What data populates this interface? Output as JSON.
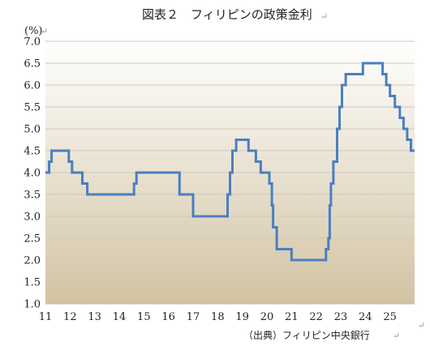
{
  "chart_data": {
    "type": "line",
    "title": "図表２　フィリピンの政策金利",
    "ylabel": "(%)",
    "source": "（出典）フィリピン中央銀行",
    "ylim": [
      1.0,
      7.0
    ],
    "xlim": [
      11,
      26
    ],
    "yticks": [
      "1.0",
      "1.5",
      "2.0",
      "2.5",
      "3.0",
      "3.5",
      "4.0",
      "4.5",
      "5.0",
      "5.5",
      "6.0",
      "6.5",
      "7.0"
    ],
    "xticks": [
      "11",
      "12",
      "13",
      "14",
      "15",
      "16",
      "17",
      "18",
      "19",
      "20",
      "21",
      "22",
      "23",
      "24",
      "25"
    ],
    "grid": true,
    "colors": {
      "line": "#4a7fc0",
      "grid": "#cfc8bd",
      "bg_top": "#ffffff",
      "bg_bottom": "#d2c3a2"
    },
    "series": [
      {
        "x": [
          11.0,
          11.15,
          11.25,
          11.33,
          11.95,
          12.08,
          12.5,
          12.7,
          14.6,
          14.7,
          16.45,
          17.0,
          18.4,
          18.5,
          18.6,
          18.75,
          19.25,
          19.55,
          19.75,
          19.9,
          20.1,
          20.2,
          20.25,
          20.4,
          20.6,
          21.0,
          22.4,
          22.5,
          22.55,
          22.6,
          22.7,
          22.75,
          22.85,
          22.95,
          23.05,
          23.2,
          23.3,
          23.4,
          23.9,
          24.7,
          24.85,
          25.0,
          25.2,
          25.4,
          25.55,
          25.7,
          25.85,
          25.95,
          26.0
        ],
        "y": [
          4.0,
          4.25,
          4.5,
          4.5,
          4.25,
          4.0,
          3.75,
          3.5,
          3.75,
          4.0,
          3.5,
          3.0,
          3.5,
          4.0,
          4.5,
          4.75,
          4.5,
          4.25,
          4.0,
          4.0,
          3.75,
          3.25,
          2.75,
          2.25,
          2.25,
          2.0,
          2.25,
          2.5,
          3.25,
          3.75,
          4.25,
          4.25,
          5.0,
          5.5,
          6.0,
          6.25,
          6.25,
          6.25,
          6.5,
          6.25,
          6.0,
          5.75,
          5.5,
          5.25,
          5.0,
          4.75,
          4.5,
          4.5,
          4.5
        ]
      }
    ]
  }
}
